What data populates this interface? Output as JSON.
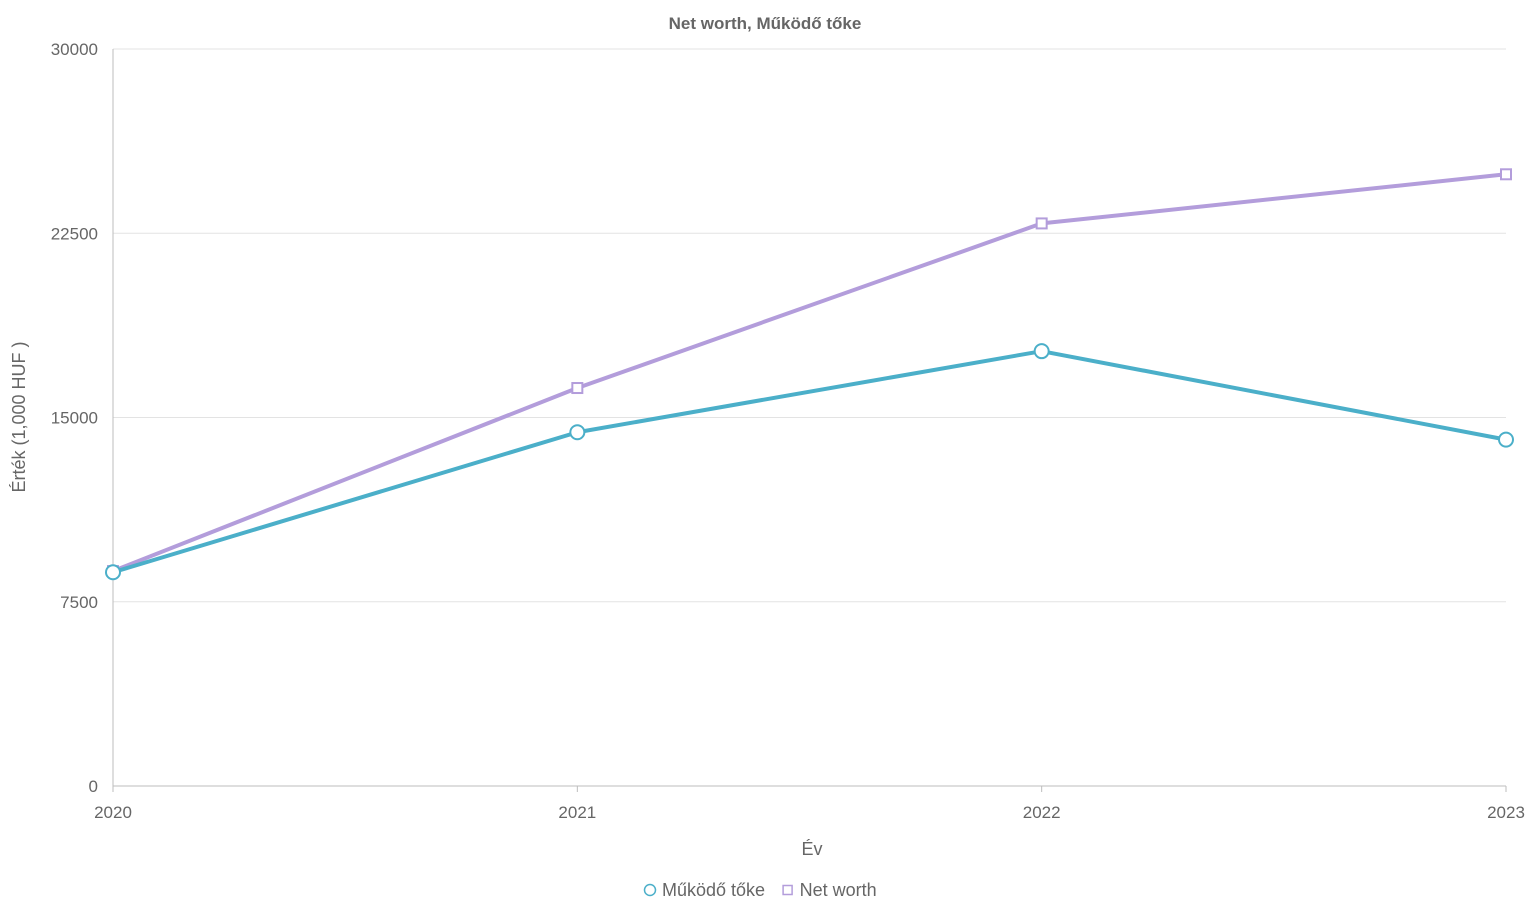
{
  "chart_data": {
    "type": "line",
    "title": "Net worth, Működő tőke",
    "xlabel": "Év",
    "ylabel": "Érték (1,000 HUF )",
    "categories": [
      "2020",
      "2021",
      "2022",
      "2023"
    ],
    "ylim": [
      0,
      30000
    ],
    "yticks": [
      "0",
      "7500",
      "15000",
      "22500",
      "30000"
    ],
    "grid": true,
    "legend_position": "bottom",
    "series": [
      {
        "name": "Működő tőke",
        "values": [
          8700,
          14400,
          17700,
          14100
        ],
        "color": "#4bafc9",
        "marker": "circle"
      },
      {
        "name": "Net worth",
        "values": [
          8750,
          16200,
          22900,
          24900
        ],
        "color": "#b39ddb",
        "marker": "square"
      }
    ]
  }
}
